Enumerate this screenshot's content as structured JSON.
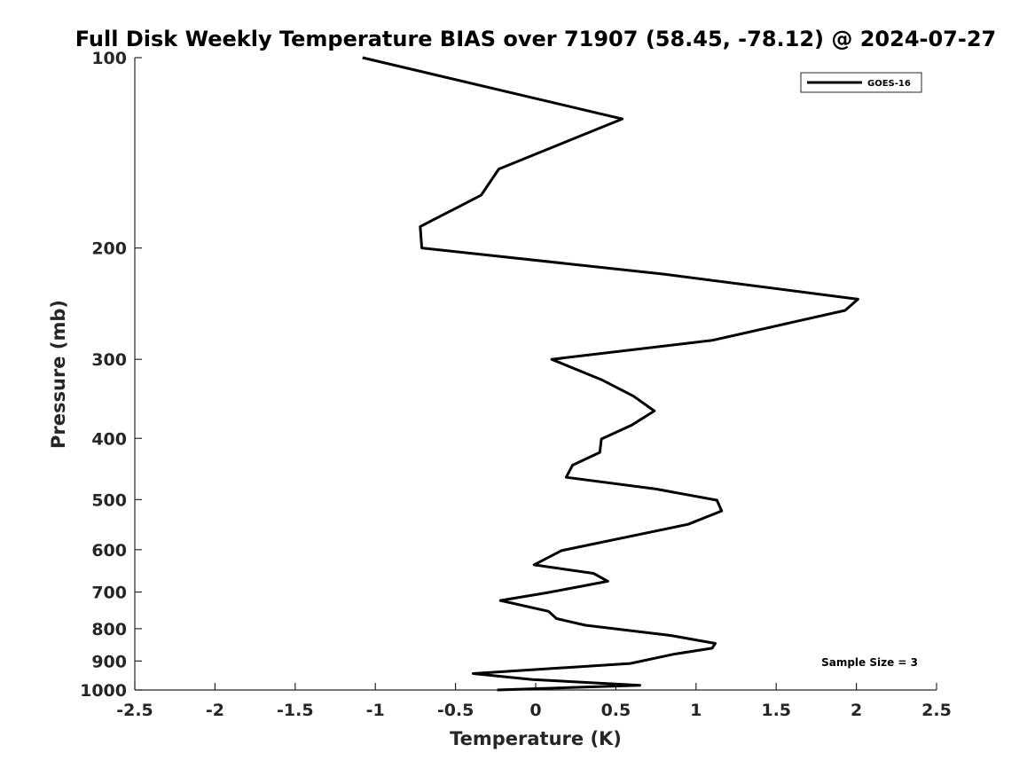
{
  "chart_data": {
    "type": "line",
    "title": "Full Disk Weekly Temperature BIAS over 71907 (58.45, -78.12) @ 2024-07-27",
    "xlabel": "Temperature (K)",
    "ylabel": "Pressure (mb)",
    "xlim": [
      -2.5,
      2.5
    ],
    "ylim": [
      1000,
      100
    ],
    "y_scale": "log",
    "y_reversed": true,
    "x_ticks": [
      "-2.5",
      "-2",
      "-1.5",
      "-1",
      "-0.5",
      "0",
      "0.5",
      "1",
      "1.5",
      "2",
      "2.5"
    ],
    "y_ticks": [
      "100",
      "200",
      "300",
      "400",
      "500",
      "600",
      "700",
      "800",
      "900",
      "1000"
    ],
    "grid": false,
    "legend_position": "top-right",
    "annotation": "Sample Size = 3",
    "line_color": "#000000",
    "series": [
      {
        "name": "GOES-16",
        "points": [
          {
            "x": -1.08,
            "y": 100
          },
          {
            "x": 0.54,
            "y": 125
          },
          {
            "x": -0.23,
            "y": 150
          },
          {
            "x": -0.34,
            "y": 165
          },
          {
            "x": -0.72,
            "y": 185
          },
          {
            "x": -0.71,
            "y": 200
          },
          {
            "x": 0.8,
            "y": 220
          },
          {
            "x": 2.01,
            "y": 241
          },
          {
            "x": 1.93,
            "y": 251
          },
          {
            "x": 1.1,
            "y": 280
          },
          {
            "x": 0.1,
            "y": 300
          },
          {
            "x": 0.41,
            "y": 323
          },
          {
            "x": 0.61,
            "y": 343
          },
          {
            "x": 0.74,
            "y": 362
          },
          {
            "x": 0.6,
            "y": 381
          },
          {
            "x": 0.41,
            "y": 401
          },
          {
            "x": 0.4,
            "y": 421
          },
          {
            "x": 0.23,
            "y": 441
          },
          {
            "x": 0.19,
            "y": 461
          },
          {
            "x": 0.75,
            "y": 481
          },
          {
            "x": 1.13,
            "y": 501
          },
          {
            "x": 1.16,
            "y": 521
          },
          {
            "x": 0.95,
            "y": 547
          },
          {
            "x": 0.16,
            "y": 602
          },
          {
            "x": -0.01,
            "y": 634
          },
          {
            "x": 0.36,
            "y": 654
          },
          {
            "x": 0.45,
            "y": 673
          },
          {
            "x": 0.07,
            "y": 702
          },
          {
            "x": -0.22,
            "y": 722
          },
          {
            "x": 0.08,
            "y": 751
          },
          {
            "x": 0.13,
            "y": 771
          },
          {
            "x": 0.31,
            "y": 790
          },
          {
            "x": 0.84,
            "y": 820
          },
          {
            "x": 1.12,
            "y": 844
          },
          {
            "x": 1.1,
            "y": 859
          },
          {
            "x": 0.86,
            "y": 878
          },
          {
            "x": 0.59,
            "y": 908
          },
          {
            "x": -0.39,
            "y": 942
          },
          {
            "x": -0.02,
            "y": 963
          },
          {
            "x": 0.65,
            "y": 983
          },
          {
            "x": -0.24,
            "y": 1000
          }
        ]
      }
    ]
  }
}
